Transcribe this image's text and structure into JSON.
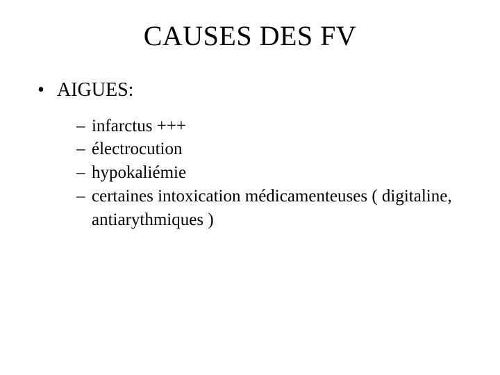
{
  "colors": {
    "background": "#ffffff",
    "text": "#000000"
  },
  "typography": {
    "family": "Times New Roman",
    "title_fontsize_pt": 40,
    "level1_fontsize_pt": 28,
    "level2_fontsize_pt": 25
  },
  "slide": {
    "title": "CAUSES DES FV",
    "level1": {
      "bullet": "•",
      "text": "AIGUES:"
    },
    "level2": [
      {
        "dash": "–",
        "text": "infarctus +++"
      },
      {
        "dash": "–",
        "text": "électrocution"
      },
      {
        "dash": "–",
        "text": "hypokaliémie"
      },
      {
        "dash": "–",
        "text": "certaines intoxication médicamenteuses ( digitaline, antiarythmiques )"
      }
    ]
  }
}
